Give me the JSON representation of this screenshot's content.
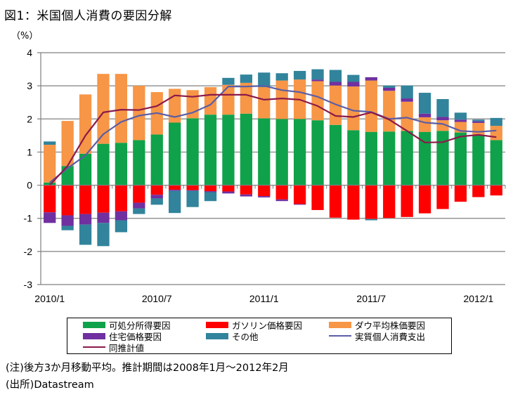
{
  "title": "図1：米国個人消費の要因分解",
  "unit_label": "（%）",
  "notes": [
    "(注)後方3か月移動平均。推計期間は2008年1月～2012年2月",
    "(出所)Datastream"
  ],
  "colors": {
    "disposable_income": "#0fa24a",
    "gasoline": "#ff0000",
    "dow": "#f79646",
    "housing": "#7030a0",
    "other": "#31849b",
    "actual": "#5b5ea6",
    "estimate": "#8b1a4a",
    "grid": "#808080"
  },
  "legend": [
    {
      "key": "disposable_income",
      "label": "可処分所得要因",
      "kind": "bar"
    },
    {
      "key": "gasoline",
      "label": "ガソリン価格要因",
      "kind": "bar"
    },
    {
      "key": "dow",
      "label": "ダウ平均株価要因",
      "kind": "bar"
    },
    {
      "key": "housing",
      "label": "住宅価格要因",
      "kind": "bar"
    },
    {
      "key": "other",
      "label": "その他",
      "kind": "bar"
    },
    {
      "key": "actual",
      "label": "実質個人消費支出",
      "kind": "line"
    },
    {
      "key": "estimate",
      "label": "同推計値",
      "kind": "line"
    }
  ],
  "chart_data": {
    "type": "bar",
    "stacked": true,
    "title": "図1：米国個人消費の要因分解",
    "ylabel": "（%）",
    "xlabel": "",
    "ylim": [
      -3,
      4
    ],
    "yticks": [
      4,
      3,
      2,
      1,
      0,
      -1,
      -2,
      -3
    ],
    "grid": true,
    "legend_position": "bottom",
    "x": [
      "2010/1",
      "2010/2",
      "2010/3",
      "2010/4",
      "2010/5",
      "2010/6",
      "2010/7",
      "2010/8",
      "2010/9",
      "2010/10",
      "2010/11",
      "2010/12",
      "2011/1",
      "2011/2",
      "2011/3",
      "2011/4",
      "2011/5",
      "2011/6",
      "2011/7",
      "2011/8",
      "2011/9",
      "2011/10",
      "2011/11",
      "2011/12",
      "2012/1",
      "2012/2"
    ],
    "xtick_labels": [
      {
        "index": 0,
        "label": "2010/1"
      },
      {
        "index": 6,
        "label": "2010/7"
      },
      {
        "index": 12,
        "label": "2011/1"
      },
      {
        "index": 18,
        "label": "2011/7"
      },
      {
        "index": 24,
        "label": "2012/1"
      }
    ],
    "series": [
      {
        "name": "可処分所得要因",
        "key": "disposable_income",
        "kind": "bar",
        "values": [
          0.08,
          0.58,
          0.95,
          1.25,
          1.28,
          1.36,
          1.53,
          1.89,
          2.02,
          2.13,
          2.13,
          2.16,
          2.02,
          2.0,
          2.0,
          1.96,
          1.82,
          1.66,
          1.61,
          1.62,
          1.64,
          1.61,
          1.64,
          1.59,
          1.52,
          1.36
        ]
      },
      {
        "name": "ガソリン価格要因",
        "key": "gasoline",
        "kind": "bar",
        "values": [
          -0.82,
          -0.91,
          -0.87,
          -0.83,
          -0.79,
          -0.53,
          -0.29,
          -0.14,
          -0.15,
          -0.18,
          -0.19,
          -0.28,
          -0.33,
          -0.43,
          -0.57,
          -0.75,
          -0.98,
          -1.04,
          -1.02,
          -0.99,
          -0.96,
          -0.85,
          -0.72,
          -0.5,
          -0.36,
          -0.31
        ]
      },
      {
        "name": "ダウ平均株価要因",
        "key": "dow",
        "kind": "bar",
        "values": [
          1.14,
          1.36,
          1.79,
          2.11,
          2.08,
          1.64,
          1.28,
          1.02,
          0.85,
          0.83,
          0.9,
          0.93,
          0.94,
          1.16,
          1.19,
          1.18,
          1.19,
          1.32,
          1.55,
          1.23,
          0.88,
          0.44,
          0.32,
          0.32,
          0.36,
          0.43
        ]
      },
      {
        "name": "住宅価格要因",
        "key": "housing",
        "kind": "bar",
        "values": [
          -0.32,
          -0.32,
          -0.32,
          -0.31,
          -0.27,
          -0.17,
          -0.11,
          -0.03,
          -0.02,
          -0.03,
          -0.06,
          -0.06,
          -0.04,
          -0.05,
          -0.02,
          0.05,
          0.11,
          0.14,
          0.1,
          0.09,
          0.1,
          0.11,
          0.1,
          0.07,
          0.05,
          0.0
        ]
      },
      {
        "name": "その他",
        "key": "other",
        "kind": "bar",
        "values": [
          0.1,
          -0.13,
          -0.61,
          -0.7,
          -0.36,
          -0.17,
          -0.19,
          -0.67,
          -0.49,
          -0.27,
          0.21,
          0.25,
          0.44,
          0.22,
          0.26,
          0.31,
          0.36,
          0.21,
          -0.04,
          0.07,
          0.39,
          0.63,
          0.54,
          0.21,
          0.05,
          0.24
        ]
      },
      {
        "name": "実質個人消費支出",
        "key": "actual",
        "kind": "line",
        "values": [
          0.08,
          0.51,
          0.9,
          1.54,
          1.91,
          2.1,
          2.18,
          2.06,
          2.19,
          2.43,
          2.98,
          2.98,
          3.0,
          2.87,
          2.81,
          2.67,
          2.44,
          2.25,
          2.21,
          2.0,
          2.04,
          1.89,
          1.85,
          1.64,
          1.61,
          1.65
        ]
      },
      {
        "name": "同推計値",
        "key": "estimate",
        "kind": "line",
        "values": [
          0.0,
          0.58,
          1.5,
          2.2,
          2.28,
          2.27,
          2.39,
          2.71,
          2.67,
          2.73,
          2.73,
          2.73,
          2.58,
          2.62,
          2.58,
          2.39,
          2.09,
          2.06,
          2.2,
          1.98,
          1.64,
          1.29,
          1.3,
          1.47,
          1.52,
          1.45
        ]
      }
    ]
  }
}
